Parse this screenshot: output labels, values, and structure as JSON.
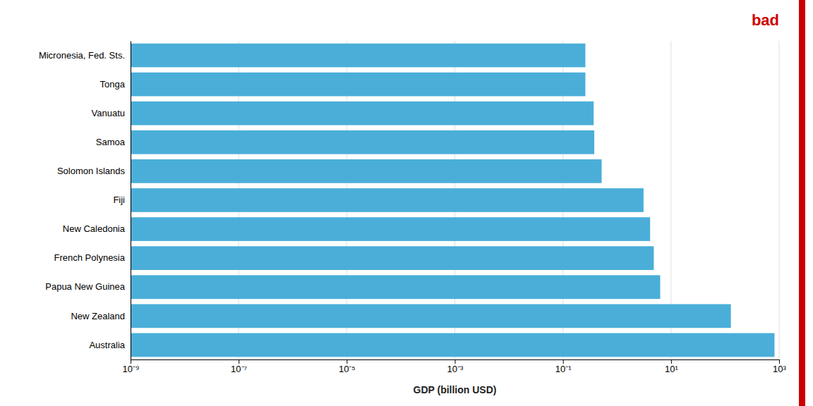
{
  "chart_data": {
    "type": "bar",
    "orientation": "horizontal",
    "categories": [
      "Australia",
      "New Zealand",
      "Papua New Guinea",
      "French Polynesia",
      "New Caledonia",
      "Fiji",
      "Solomon Islands",
      "Samoa",
      "Vanuatu",
      "Tonga",
      "Micronesia, Fed. Sts."
    ],
    "values": [
      821.0,
      128.0,
      6.3,
      4.8,
      4.1,
      3.1,
      0.52,
      0.38,
      0.37,
      0.26,
      0.26
    ],
    "color": "#4aaed9",
    "xlabel": "GDP (billion USD)",
    "log": "x",
    "xlim": [
      1e-09,
      1000
    ],
    "xticks": [
      {
        "value": 1e-09,
        "label": "10⁻⁹"
      },
      {
        "value": 1e-07,
        "label": "10⁻⁷"
      },
      {
        "value": 1e-05,
        "label": "10⁻⁵"
      },
      {
        "value": 0.001,
        "label": "10⁻³"
      },
      {
        "value": 0.1,
        "label": "10⁻¹"
      },
      {
        "value": 10,
        "label": "10¹"
      },
      {
        "value": 1000,
        "label": "10³"
      }
    ],
    "grid": true,
    "annotations": [
      {
        "text": "bad",
        "color": "#cc0000"
      }
    ]
  }
}
